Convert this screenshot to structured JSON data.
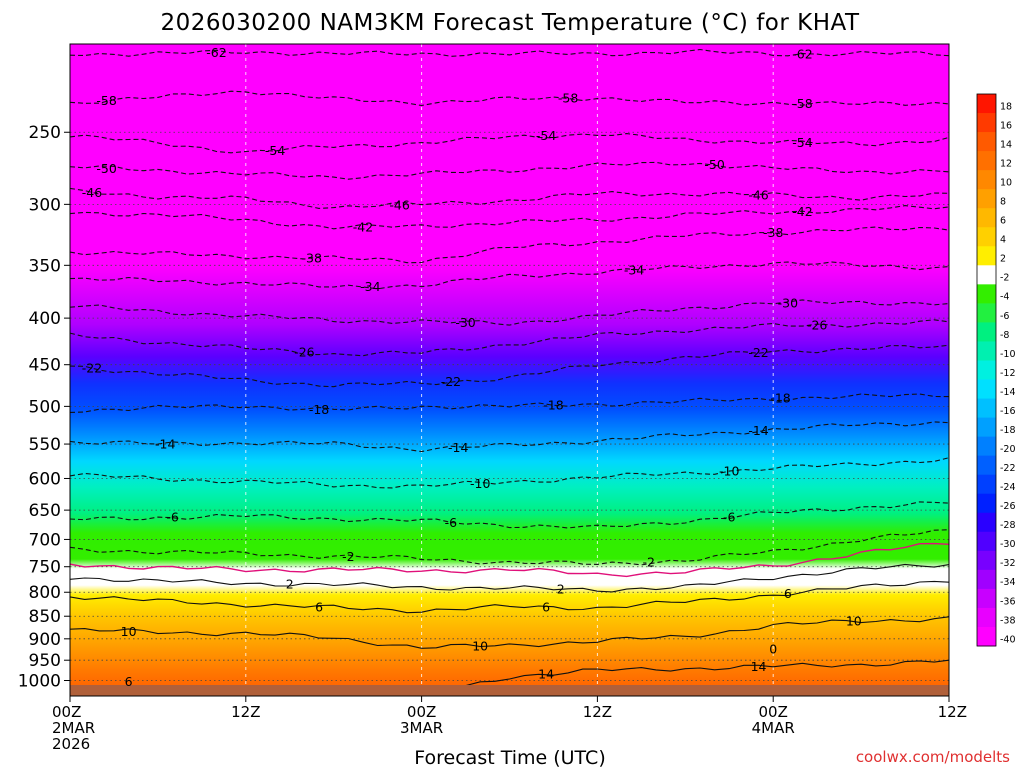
{
  "chart_data": {
    "type": "heatmap",
    "title": "2026030200 NAM3KM Forecast Temperature (°C) for KHAT",
    "xlabel": "Forecast Time (UTC)",
    "credit": "coolwx.com/modelts",
    "y_scale": "log",
    "ylim": [
      1040,
      200
    ],
    "xlim": [
      0,
      60
    ],
    "y_ticks": [
      250,
      300,
      350,
      400,
      450,
      500,
      550,
      600,
      650,
      700,
      750,
      800,
      850,
      900,
      950,
      1000
    ],
    "x_ticks": [
      {
        "x": 0,
        "lines": [
          "00Z",
          "2MAR",
          "2026"
        ]
      },
      {
        "x": 12,
        "lines": [
          "12Z"
        ]
      },
      {
        "x": 24,
        "lines": [
          "00Z",
          "3MAR"
        ]
      },
      {
        "x": 36,
        "lines": [
          "12Z"
        ]
      },
      {
        "x": 48,
        "lines": [
          "00Z",
          "4MAR"
        ]
      },
      {
        "x": 60,
        "lines": [
          "12Z"
        ]
      }
    ],
    "colorbar": {
      "levels": [
        18,
        16,
        14,
        12,
        10,
        8,
        6,
        4,
        2,
        -2,
        -4,
        -6,
        -8,
        -10,
        -12,
        -14,
        -16,
        -18,
        -20,
        -22,
        -24,
        -26,
        -28,
        -30,
        -32,
        -34,
        -36,
        -38,
        -40
      ],
      "colors": [
        "#ff1500",
        "#ff3a00",
        "#ff5a00",
        "#ff7000",
        "#ff8800",
        "#ffa000",
        "#ffb800",
        "#ffd000",
        "#ffee00",
        "#ffffff",
        "#33ee00",
        "#22f040",
        "#00f080",
        "#00f0b0",
        "#00f0e0",
        "#00e0ff",
        "#00c0ff",
        "#00a0ff",
        "#0080ff",
        "#0060ff",
        "#0040ff",
        "#0020ff",
        "#2a00ff",
        "#5000ff",
        "#7800ff",
        "#a000ff",
        "#c800ff",
        "#e800ff",
        "#ff00ff"
      ]
    },
    "series": [
      {
        "level": -62,
        "style": "dashed",
        "x": [
          0,
          6,
          12,
          18,
          24,
          30,
          36,
          42,
          48,
          54,
          60
        ],
        "y": [
          205,
          205,
          204,
          205,
          205,
          205,
          205,
          204,
          205,
          205,
          205
        ],
        "labels_at": [
          10,
          50
        ]
      },
      {
        "level": -58,
        "style": "dashed",
        "x": [
          0,
          6,
          12,
          18,
          24,
          30,
          36,
          42,
          48,
          54,
          60
        ],
        "y": [
          232,
          229,
          225,
          230,
          232,
          230,
          229,
          232,
          232,
          233,
          232
        ],
        "labels_at": [
          2.5,
          34,
          50
        ]
      },
      {
        "level": -54,
        "style": "dashed",
        "x": [
          0,
          6,
          12,
          18,
          24,
          30,
          36,
          42,
          48,
          54,
          60
        ],
        "y": [
          252,
          257,
          263,
          259,
          257,
          253,
          251,
          255,
          256,
          258,
          254
        ],
        "labels_at": [
          14,
          32.5,
          50
        ]
      },
      {
        "level": -50,
        "style": "dashed",
        "x": [
          0,
          6,
          12,
          18,
          24,
          30,
          36,
          42,
          48,
          54,
          60
        ],
        "y": [
          273,
          275,
          278,
          280,
          278,
          275,
          272,
          270,
          274,
          276,
          276
        ],
        "labels_at": [
          2.5,
          44
        ]
      },
      {
        "level": -46,
        "style": "dashed",
        "x": [
          0,
          6,
          12,
          18,
          24,
          30,
          36,
          42,
          48,
          54,
          60
        ],
        "y": [
          290,
          294,
          296,
          302,
          300,
          297,
          292,
          292,
          293,
          295,
          293
        ],
        "labels_at": [
          1.5,
          22.5,
          47
        ]
      },
      {
        "level": -42,
        "style": "dashed",
        "x": [
          0,
          6,
          12,
          18,
          24,
          30,
          36,
          42,
          48,
          54,
          60
        ],
        "y": [
          306,
          308,
          312,
          318,
          317,
          314,
          312,
          308,
          306,
          304,
          302
        ],
        "labels_at": [
          20,
          50
        ]
      },
      {
        "level": -38,
        "style": "dashed",
        "x": [
          0,
          6,
          12,
          18,
          24,
          30,
          36,
          42,
          48,
          54,
          60
        ],
        "y": [
          338,
          340,
          342,
          344,
          346,
          335,
          330,
          325,
          322,
          320,
          318
        ],
        "labels_at": [
          16.5,
          48
        ]
      },
      {
        "level": -34,
        "style": "dashed",
        "x": [
          0,
          6,
          12,
          18,
          24,
          30,
          36,
          42,
          48,
          54,
          60
        ],
        "y": [
          362,
          364,
          366,
          370,
          368,
          360,
          356,
          352,
          348,
          350,
          352
        ],
        "labels_at": [
          20.5,
          38.5
        ]
      },
      {
        "level": -30,
        "style": "dashed",
        "x": [
          0,
          6,
          12,
          18,
          24,
          30,
          36,
          42,
          48,
          54,
          60
        ],
        "y": [
          388,
          393,
          398,
          402,
          404,
          405,
          398,
          390,
          385,
          384,
          386
        ],
        "labels_at": [
          27,
          49
        ]
      },
      {
        "level": -26,
        "style": "dashed",
        "x": [
          0,
          6,
          12,
          18,
          24,
          30,
          36,
          42,
          48,
          54,
          60
        ],
        "y": [
          418,
          425,
          432,
          438,
          437,
          427,
          418,
          412,
          408,
          406,
          404
        ],
        "labels_at": [
          16,
          51
        ]
      },
      {
        "level": -22,
        "style": "dashed",
        "x": [
          0,
          6,
          12,
          18,
          24,
          30,
          36,
          42,
          48,
          54,
          60
        ],
        "y": [
          452,
          460,
          468,
          474,
          472,
          465,
          450,
          442,
          435,
          432,
          430
        ],
        "labels_at": [
          1.5,
          26,
          47
        ]
      },
      {
        "level": -18,
        "style": "dashed",
        "x": [
          0,
          6,
          12,
          18,
          24,
          30,
          36,
          42,
          48,
          54,
          60
        ],
        "y": [
          505,
          502,
          499,
          505,
          500,
          500,
          497,
          494,
          490,
          488,
          485
        ],
        "labels_at": [
          17,
          33,
          48.5
        ]
      },
      {
        "level": -14,
        "style": "dashed",
        "x": [
          0,
          6,
          12,
          18,
          24,
          30,
          36,
          42,
          48,
          54,
          60
        ],
        "y": [
          547,
          550,
          548,
          550,
          557,
          552,
          545,
          538,
          530,
          524,
          520
        ],
        "labels_at": [
          6.5,
          26.5,
          47
        ]
      },
      {
        "level": -10,
        "style": "dashed",
        "x": [
          0,
          6,
          12,
          18,
          24,
          30,
          36,
          42,
          48,
          54,
          60
        ],
        "y": [
          595,
          600,
          605,
          610,
          612,
          605,
          598,
          592,
          585,
          578,
          572
        ],
        "labels_at": [
          28,
          45
        ]
      },
      {
        "level": -6,
        "style": "dashed",
        "x": [
          0,
          6,
          12,
          18,
          24,
          30,
          36,
          42,
          48,
          54,
          60
        ],
        "y": [
          666,
          662,
          660,
          664,
          668,
          675,
          680,
          668,
          655,
          645,
          638
        ],
        "labels_at": [
          7,
          26,
          45
        ]
      },
      {
        "level": -2,
        "style": "dashed",
        "x": [
          0,
          6,
          12,
          18,
          24,
          30,
          36,
          42,
          48,
          54,
          60
        ],
        "y": [
          718,
          722,
          726,
          730,
          735,
          742,
          745,
          738,
          722,
          700,
          685
        ],
        "labels_at": [
          19,
          39.5
        ]
      },
      {
        "level": 0,
        "style": "magenta",
        "x": [
          0,
          6,
          12,
          18,
          24,
          30,
          36,
          42,
          48,
          54,
          60
        ],
        "y": [
          745,
          752,
          756,
          755,
          758,
          755,
          765,
          760,
          748,
          725,
          705
        ]
      },
      {
        "level": 2,
        "style": "solid",
        "x": [
          0,
          6,
          12,
          18,
          24,
          30,
          36,
          42,
          48,
          54,
          60
        ],
        "y": [
          770,
          778,
          782,
          785,
          790,
          792,
          795,
          790,
          770,
          755,
          745
        ],
        "labels_at": [
          15,
          33.5
        ]
      },
      {
        "level": 6,
        "style": "solid",
        "x": [
          0,
          6,
          12,
          18,
          24,
          30,
          36,
          42,
          48,
          54,
          60
        ],
        "y": [
          808,
          818,
          825,
          832,
          838,
          830,
          832,
          820,
          805,
          790,
          775
        ],
        "labels_at": [
          17,
          32.5,
          49
        ]
      },
      {
        "level": 10,
        "style": "solid",
        "x": [
          0,
          6,
          12,
          18,
          24,
          30,
          36,
          42,
          48,
          54,
          60
        ],
        "y": [
          880,
          885,
          888,
          898,
          920,
          915,
          905,
          895,
          870,
          860,
          855
        ],
        "labels_at": [
          4,
          28,
          53.5
        ]
      },
      {
        "level": 14,
        "style": "solid",
        "x": [
          0,
          6,
          12,
          18,
          24,
          30,
          36,
          42,
          48,
          54,
          60
        ],
        "y": [
          1040,
          1040,
          1040,
          1040,
          1040,
          990,
          975,
          970,
          965,
          960,
          952
        ],
        "labels_at": [
          32.5,
          47
        ]
      }
    ],
    "extra_labels": [
      {
        "text": "6",
        "x": 4,
        "y": 1003
      },
      {
        "text": "0",
        "x": 48,
        "y": 923
      }
    ],
    "grid": true
  }
}
